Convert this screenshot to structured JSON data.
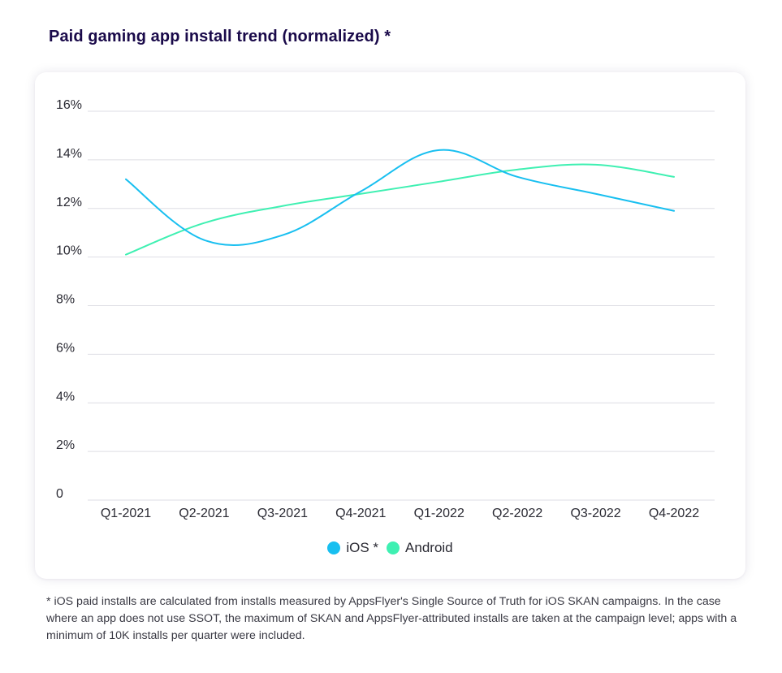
{
  "title": "Paid gaming app install trend (normalized) *",
  "footnote": "* iOS paid installs are calculated from installs measured by AppsFlyer's Single Source of Truth for iOS SKAN campaigns. In the case where an app does not use SSOT, the maximum of SKAN and AppsFlyer-attributed installs are taken at the campaign level; apps with a minimum of 10K installs per quarter were included.",
  "chart_data": {
    "type": "line",
    "title": "Paid gaming app install trend (normalized) *",
    "xlabel": "",
    "ylabel": "",
    "categories": [
      "Q1-2021",
      "Q2-2021",
      "Q3-2021",
      "Q4-2021",
      "Q1-2022",
      "Q2-2022",
      "Q3-2022",
      "Q4-2022"
    ],
    "ylim": [
      0,
      16
    ],
    "y_ticks": [
      {
        "value": 0,
        "label": "0"
      },
      {
        "value": 2,
        "label": "2%"
      },
      {
        "value": 4,
        "label": "4%"
      },
      {
        "value": 6,
        "label": "6%"
      },
      {
        "value": 8,
        "label": "8%"
      },
      {
        "value": 10,
        "label": "10%"
      },
      {
        "value": 12,
        "label": "12%"
      },
      {
        "value": 14,
        "label": "14%"
      },
      {
        "value": 16,
        "label": "16%"
      }
    ],
    "grid": true,
    "legend_position": "bottom-center",
    "series": [
      {
        "name": "iOS *",
        "color": "#18bff0",
        "values": [
          13.2,
          10.7,
          10.9,
          12.7,
          14.4,
          13.3,
          12.6,
          11.9
        ]
      },
      {
        "name": "Android",
        "color": "#3ff0b2",
        "values": [
          10.1,
          11.4,
          12.1,
          12.6,
          13.1,
          13.6,
          13.8,
          13.3
        ]
      }
    ]
  }
}
